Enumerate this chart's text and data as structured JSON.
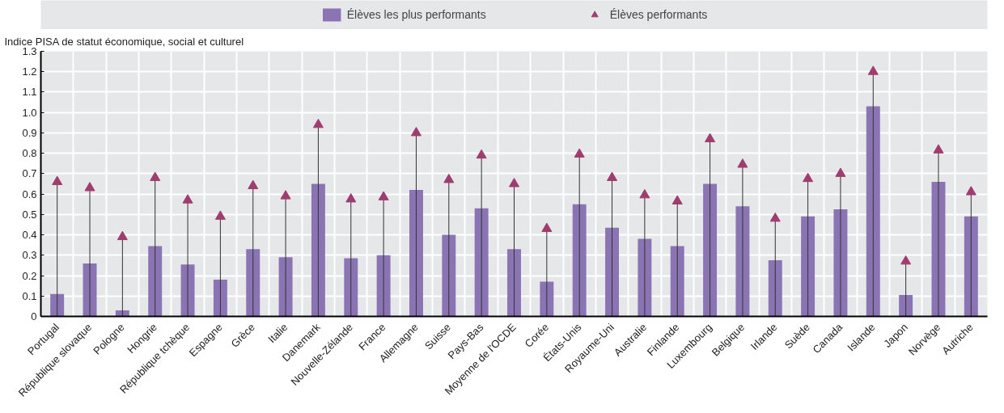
{
  "chart_data": {
    "type": "bar",
    "ylabel": "Indice PISA de statut économique, social et culturel",
    "categories": [
      "Portugal",
      "République slovaque",
      "Pologne",
      "Hongrie",
      "République tchèque",
      "Espagne",
      "Grèce",
      "Italie",
      "Danemark",
      "Nouvelle-Zélande",
      "France",
      "Allemagne",
      "Suisse",
      "Pays-Bas",
      "Moyenne de l'OCDE",
      "Corée",
      "États-Unis",
      "Royaume-Uni",
      "Australie",
      "Finlande",
      "Luxembourg",
      "Belgique",
      "Irlande",
      "Suède",
      "Canada",
      "Islande",
      "Japon",
      "Norvège",
      "Autriche"
    ],
    "series": [
      {
        "name": "Élèves les plus performants",
        "color": "#8a74b4",
        "values": [
          0.11,
          0.26,
          0.03,
          0.345,
          0.255,
          0.18,
          0.33,
          0.29,
          0.65,
          0.285,
          0.3,
          0.62,
          0.4,
          0.53,
          0.33,
          0.17,
          0.55,
          0.435,
          0.38,
          0.345,
          0.65,
          0.54,
          0.275,
          0.49,
          0.525,
          1.03,
          0.105,
          0.66,
          0.49
        ]
      },
      {
        "name": "Élèves performants",
        "type": "lollipop",
        "marker": "triangle",
        "color": "#a03c70",
        "values": [
          0.66,
          0.63,
          0.39,
          0.68,
          0.57,
          0.49,
          0.64,
          0.59,
          0.94,
          0.575,
          0.585,
          0.9,
          0.67,
          0.79,
          0.65,
          0.43,
          0.795,
          0.68,
          0.595,
          0.565,
          0.87,
          0.745,
          0.48,
          0.675,
          0.7,
          1.2,
          0.27,
          0.815,
          0.61
        ]
      }
    ],
    "ylim": [
      0,
      1.3
    ],
    "yticks": [
      0,
      0.1,
      0.2,
      0.3,
      0.4,
      0.5,
      0.6,
      0.7,
      0.8,
      0.9,
      {
        "value": 1,
        "label": "1.0"
      },
      1.1,
      1.2,
      1.3
    ],
    "grid": true,
    "legend": "top"
  }
}
